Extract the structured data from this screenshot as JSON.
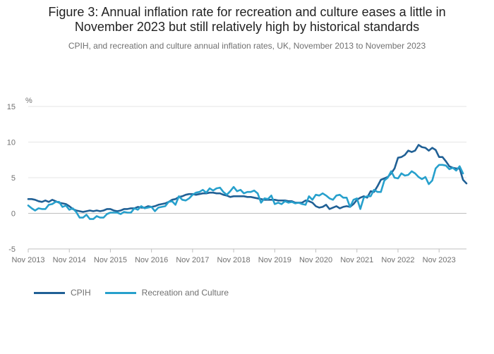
{
  "header": {
    "title_line1": "Figure 3: Annual inflation rate for recreation and culture eases a little in",
    "title_line2": "November 2023 but still relatively high by historical standards",
    "subtitle": "CPIH, and recreation and culture annual inflation rates, UK, November 2013 to November 2023"
  },
  "chart_data": {
    "type": "line",
    "title": "Figure 3: Annual inflation rate for recreation and culture eases a little in November 2023 but still relatively high by historical standards",
    "subtitle": "CPIH, and recreation and culture annual inflation rates, UK, November 2013 to November 2023",
    "y_unit": "%",
    "ylim": [
      -5,
      15
    ],
    "y_ticks": [
      15,
      10,
      5,
      0,
      -5
    ],
    "x_start": "Nov 2013",
    "x_ticks": [
      "Nov 2013",
      "Nov 2014",
      "Nov 2015",
      "Nov 2016",
      "Nov 2017",
      "Nov 2018",
      "Nov 2019",
      "Nov 2020",
      "Nov 2021",
      "Nov 2022",
      "Nov 2023"
    ],
    "grid": true,
    "legend_position": "bottom-left",
    "series": [
      {
        "name": "CPIH",
        "color": "#206095",
        "values": [
          2.0,
          2.0,
          1.9,
          1.7,
          1.6,
          1.8,
          1.6,
          1.9,
          1.7,
          1.5,
          1.4,
          1.3,
          1.0,
          0.6,
          0.4,
          0.3,
          0.2,
          0.3,
          0.4,
          0.3,
          0.4,
          0.3,
          0.4,
          0.6,
          0.6,
          0.4,
          0.3,
          0.4,
          0.6,
          0.6,
          0.7,
          0.7,
          0.9,
          0.8,
          0.8,
          1.0,
          0.9,
          1.0,
          1.2,
          1.3,
          1.4,
          1.6,
          1.9,
          2.0,
          2.3,
          2.4,
          2.6,
          2.7,
          2.7,
          2.6,
          2.7,
          2.8,
          2.8,
          2.9,
          2.9,
          2.8,
          2.8,
          2.6,
          2.5,
          2.3,
          2.4,
          2.4,
          2.4,
          2.4,
          2.3,
          2.3,
          2.2,
          2.1,
          2.0,
          1.9,
          1.9,
          1.9,
          1.9,
          1.8,
          1.8,
          1.8,
          1.7,
          1.7,
          1.5,
          1.5,
          1.5,
          1.8,
          1.7,
          1.5,
          1.0,
          0.8,
          0.9,
          1.2,
          0.6,
          0.8,
          1.0,
          0.7,
          0.9,
          1.0,
          0.9,
          1.3,
          1.9,
          2.2,
          2.4,
          2.2,
          3.1,
          3.0,
          3.8,
          4.7,
          4.9,
          5.1,
          5.6,
          6.3,
          7.8,
          7.9,
          8.2,
          8.8,
          8.6,
          8.8,
          9.6,
          9.3,
          9.2,
          8.8,
          9.2,
          8.9,
          7.9,
          7.9,
          7.3,
          6.6,
          6.4,
          6.3,
          6.3,
          4.7,
          4.2
        ]
      },
      {
        "name": "Recreation and Culture",
        "color": "#27a0cc",
        "values": [
          1.1,
          0.7,
          0.4,
          0.7,
          0.6,
          0.6,
          1.2,
          1.3,
          1.6,
          1.6,
          0.9,
          1.1,
          0.5,
          0.7,
          0.2,
          -0.6,
          -0.6,
          -0.2,
          -0.8,
          -0.8,
          -0.4,
          -0.6,
          -0.6,
          -0.1,
          0.1,
          0.1,
          0.1,
          -0.1,
          0.2,
          0.1,
          0.1,
          0.7,
          0.5,
          1.0,
          0.7,
          0.8,
          0.9,
          0.3,
          0.8,
          0.9,
          1.0,
          1.6,
          1.7,
          1.2,
          2.4,
          1.9,
          1.8,
          2.1,
          2.6,
          2.9,
          3.0,
          3.3,
          2.9,
          3.5,
          3.2,
          3.5,
          3.6,
          3.0,
          2.6,
          3.1,
          3.7,
          3.1,
          3.3,
          2.8,
          3.0,
          3.0,
          3.2,
          2.8,
          1.5,
          2.1,
          2.0,
          2.5,
          1.3,
          1.5,
          1.3,
          1.7,
          1.5,
          1.6,
          1.4,
          1.5,
          1.3,
          1.2,
          2.4,
          1.9,
          2.6,
          2.5,
          2.8,
          2.5,
          2.1,
          1.9,
          2.5,
          2.6,
          2.2,
          2.2,
          0.9,
          1.9,
          2.1,
          0.6,
          2.2,
          2.4,
          2.4,
          3.3,
          3.0,
          3.0,
          4.6,
          5.0,
          5.9,
          5.0,
          4.9,
          5.6,
          5.3,
          5.4,
          5.9,
          5.6,
          5.1,
          4.8,
          5.1,
          4.1,
          4.6,
          6.3,
          6.8,
          6.8,
          6.7,
          6.2,
          6.4,
          6.0,
          6.6,
          5.6
        ]
      }
    ]
  }
}
